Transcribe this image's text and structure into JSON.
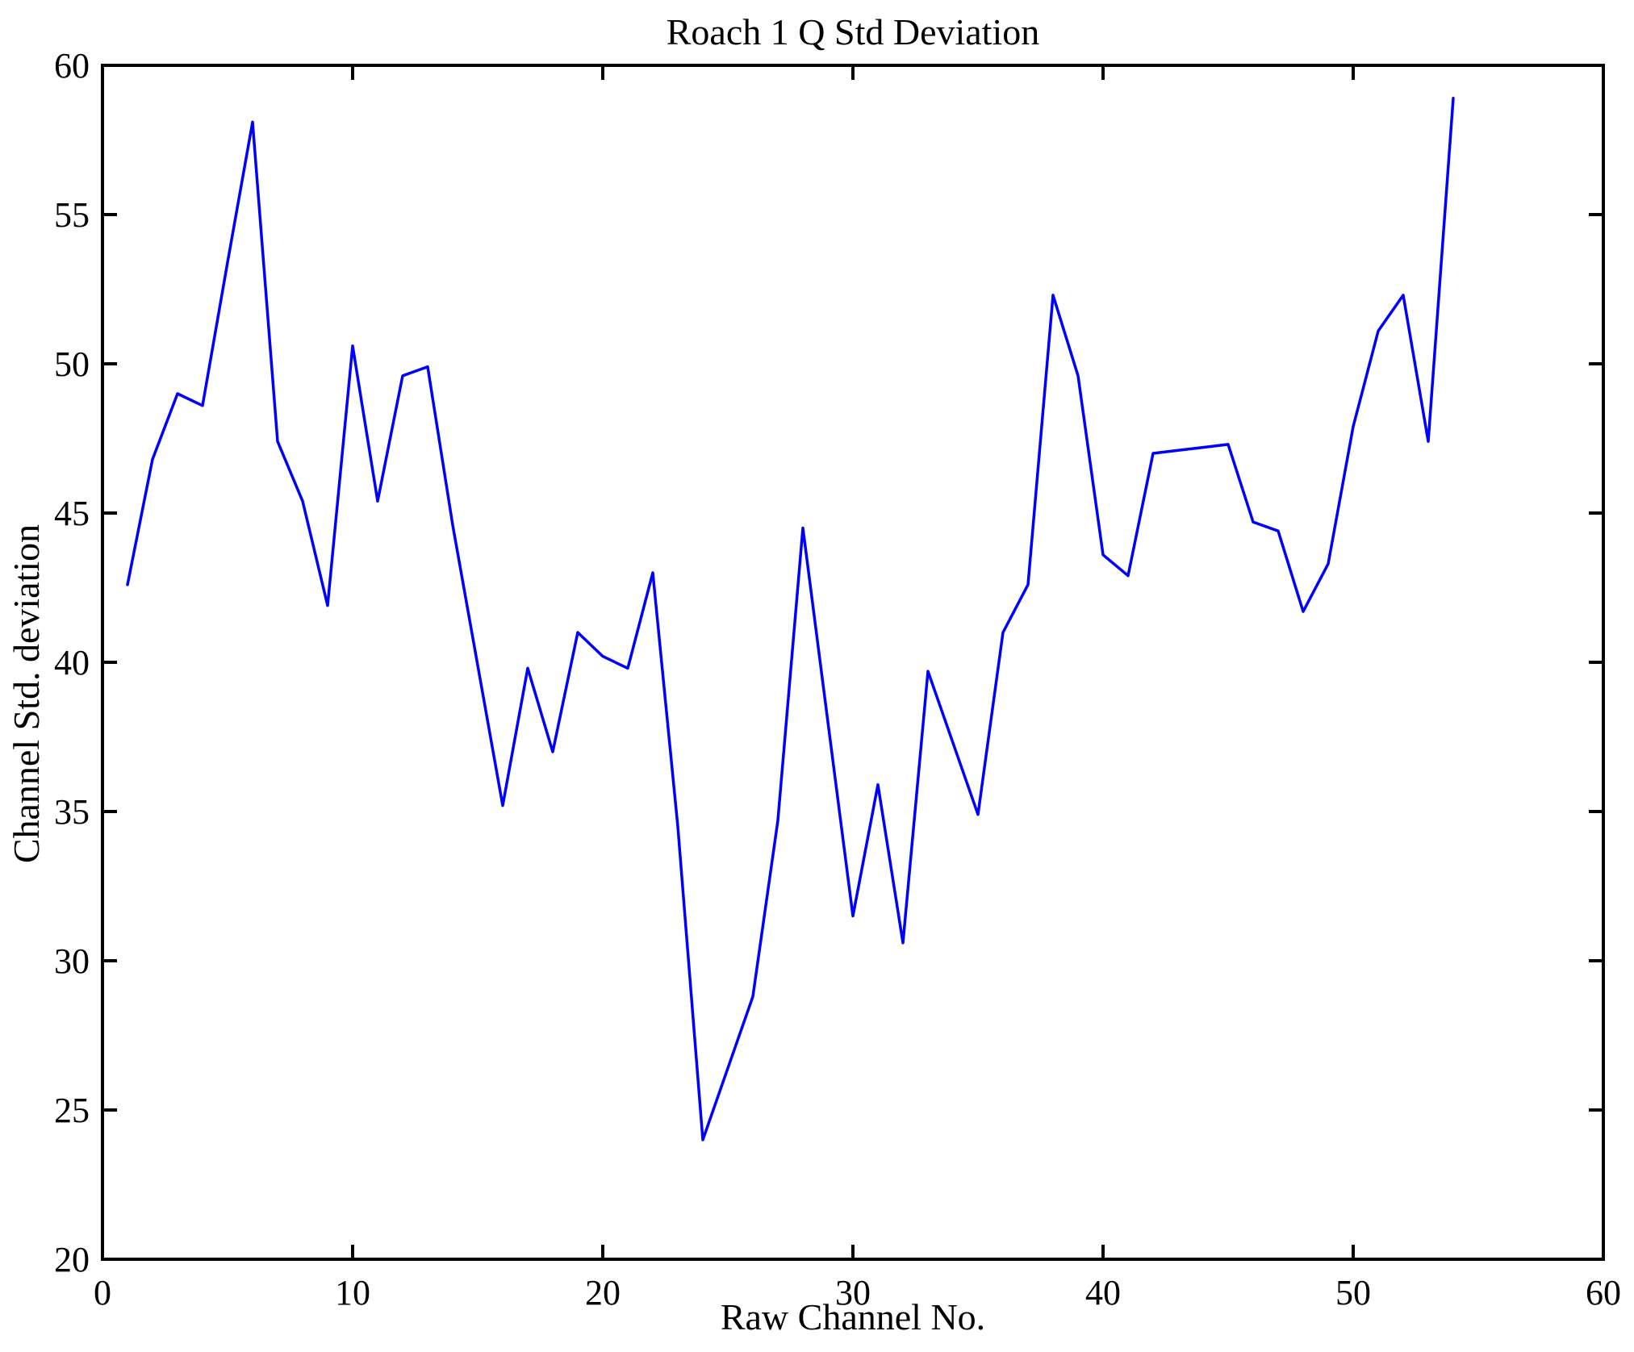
{
  "figure": {
    "background_color": "#ffffff",
    "axis_color": "#000000",
    "title": "Roach 1 Q Std Deviation"
  },
  "chart_data": {
    "type": "line",
    "title": "Roach 1 Q Std Deviation",
    "xlabel": "Raw Channel No.",
    "ylabel": "Channel Std. deviation",
    "xlim": [
      0,
      60
    ],
    "ylim": [
      20,
      60
    ],
    "xticks": [
      0,
      10,
      20,
      30,
      40,
      50,
      60
    ],
    "yticks": [
      20,
      25,
      30,
      35,
      40,
      45,
      50,
      55,
      60
    ],
    "grid": false,
    "legend_position": "none",
    "line_color": "#0000ff",
    "series_name": "Channel Std. deviation",
    "x": [
      1,
      2,
      3,
      4,
      5,
      6,
      7,
      8,
      9,
      10,
      11,
      12,
      13,
      14,
      15,
      16,
      17,
      18,
      19,
      20,
      21,
      22,
      23,
      24,
      25,
      26,
      27,
      28,
      29,
      30,
      31,
      32,
      33,
      34,
      35,
      36,
      37,
      38,
      39,
      40,
      41,
      42,
      43,
      44,
      45,
      46,
      47,
      48,
      49,
      50,
      51,
      52,
      53,
      54
    ],
    "y": [
      42.6,
      46.8,
      49.0,
      48.6,
      53.4,
      58.1,
      47.4,
      45.4,
      41.9,
      50.6,
      45.4,
      49.6,
      49.9,
      44.6,
      39.9,
      35.2,
      39.8,
      37.0,
      41.0,
      40.2,
      39.8,
      43.0,
      34.5,
      24.0,
      26.4,
      28.8,
      34.7,
      44.5,
      38.0,
      31.5,
      35.9,
      30.6,
      39.7,
      37.3,
      34.9,
      41.0,
      42.6,
      52.3,
      49.6,
      43.6,
      42.9,
      47.0,
      47.1,
      47.2,
      47.3,
      44.7,
      44.4,
      41.7,
      43.3,
      47.9,
      51.1,
      52.3,
      47.4,
      58.9
    ]
  }
}
